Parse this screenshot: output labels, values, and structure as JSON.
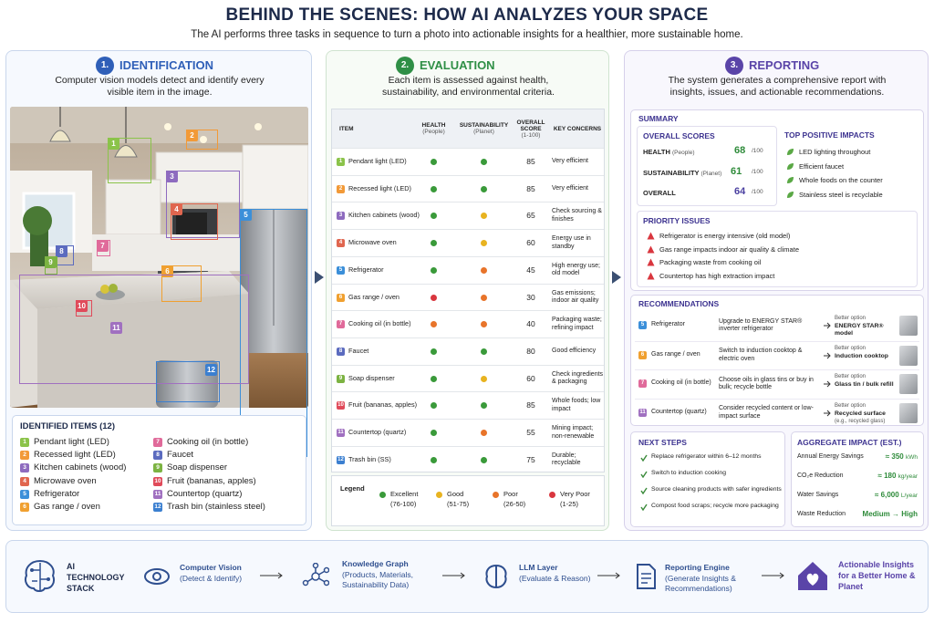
{
  "header": {
    "title": "BEHIND THE SCENES: HOW AI ANALYZES YOUR SPACE",
    "subtitle": "The AI performs three tasks in sequence to turn a photo into actionable insights for a healthier, more sustainable home."
  },
  "identification": {
    "number": "1.",
    "title": "IDENTIFICATION",
    "description": "Computer vision models detect and identify every visible item in the image.",
    "items_title": "IDENTIFIED ITEMS (12)",
    "items": [
      {
        "num": "1",
        "name": "Pendant light (LED)",
        "color": "#8bc34a"
      },
      {
        "num": "2",
        "name": "Recessed light (LED)",
        "color": "#f29a38"
      },
      {
        "num": "3",
        "name": "Kitchen cabinets (wood)",
        "color": "#8e6bbf"
      },
      {
        "num": "4",
        "name": "Microwave oven",
        "color": "#e0664f"
      },
      {
        "num": "5",
        "name": "Refrigerator",
        "color": "#3b8fd9"
      },
      {
        "num": "6",
        "name": "Gas range / oven",
        "color": "#f0a030"
      },
      {
        "num": "7",
        "name": "Cooking oil (in bottle)",
        "color": "#e06a9a"
      },
      {
        "num": "8",
        "name": "Faucet",
        "color": "#5b6bbf"
      },
      {
        "num": "9",
        "name": "Soap dispenser",
        "color": "#7cb342"
      },
      {
        "num": "10",
        "name": "Fruit (bananas, apples)",
        "color": "#e04a5a"
      },
      {
        "num": "11",
        "name": "Countertop (quartz)",
        "color": "#a070c0"
      },
      {
        "num": "12",
        "name": "Trash bin (stainless steel)",
        "color": "#3b7fd0"
      }
    ]
  },
  "evaluation": {
    "number": "2.",
    "title": "EVALUATION",
    "description": "Each item is assessed against health, sustainability, and environmental criteria.",
    "table": {
      "headers": [
        {
          "label": "ITEM"
        },
        {
          "label": "HEALTH",
          "sub": "(People)"
        },
        {
          "label": "SUSTAINABILITY",
          "sub": "(Planet)"
        },
        {
          "label": "OVERALL SCORE",
          "sub": "(1-100)"
        },
        {
          "label": "KEY CONCERNS"
        }
      ],
      "rows": [
        {
          "item": "Pendant light (LED)",
          "health": "#3a9a3a",
          "sustainability": "#3a9a3a",
          "score": 85,
          "concerns": "Very efficient"
        },
        {
          "item": "Recessed light (LED)",
          "health": "#3a9a3a",
          "sustainability": "#3a9a3a",
          "score": 85,
          "concerns": "Very efficient"
        },
        {
          "item": "Kitchen cabinets (wood)",
          "health": "#3a9a3a",
          "sustainability": "#e8b320",
          "score": 65,
          "concerns": "Check sourcing & finishes"
        },
        {
          "item": "Microwave oven",
          "health": "#3a9a3a",
          "sustainability": "#e8b320",
          "score": 60,
          "concerns": "Energy use in standby"
        },
        {
          "item": "Refrigerator",
          "health": "#3a9a3a",
          "sustainability": "#e8742a",
          "score": 45,
          "concerns": "High energy use; old model"
        },
        {
          "item": "Gas range / oven",
          "health": "#d9363e",
          "sustainability": "#e8742a",
          "score": 30,
          "concerns": "Gas emissions; indoor air quality"
        },
        {
          "item": "Cooking oil (in bottle)",
          "health": "#e8742a",
          "sustainability": "#e8742a",
          "score": 40,
          "concerns": "Packaging waste; refining impact"
        },
        {
          "item": "Faucet",
          "health": "#3a9a3a",
          "sustainability": "#3a9a3a",
          "score": 80,
          "concerns": "Good efficiency"
        },
        {
          "item": "Soap dispenser",
          "health": "#3a9a3a",
          "sustainability": "#e8b320",
          "score": 60,
          "concerns": "Check ingredients & packaging"
        },
        {
          "item": "Fruit (bananas, apples)",
          "health": "#3a9a3a",
          "sustainability": "#3a9a3a",
          "score": 85,
          "concerns": "Whole foods; low impact"
        },
        {
          "item": "Countertop (quartz)",
          "health": "#3a9a3a",
          "sustainability": "#e8742a",
          "score": 55,
          "concerns": "Mining impact; non-renewable"
        },
        {
          "item": "Trash bin (SS)",
          "health": "#3a9a3a",
          "sustainability": "#3a9a3a",
          "score": 75,
          "concerns": "Durable; recyclable"
        }
      ]
    },
    "legend": {
      "title": "Legend",
      "entries": [
        {
          "label": "Excellent",
          "range": "(76-100)",
          "color": "#3a9a3a"
        },
        {
          "label": "Good",
          "range": "(51-75)",
          "color": "#e8b320"
        },
        {
          "label": "Poor",
          "range": "(26-50)",
          "color": "#e8742a"
        },
        {
          "label": "Very Poor",
          "range": "(1-25)",
          "color": "#d9363e"
        }
      ]
    }
  },
  "reporting": {
    "number": "3.",
    "title": "REPORTING",
    "description": "The system generates a comprehensive report with insights, issues, and actionable recommendations.",
    "summary_title": "SUMMARY",
    "overall_scores": {
      "title": "OVERALL SCORES",
      "rows": [
        {
          "label": "HEALTH",
          "sub": "(People)",
          "score": 68,
          "max": "/100",
          "color": "#2e8b3a"
        },
        {
          "label": "SUSTAINABILITY",
          "sub": "(Planet)",
          "score": 61,
          "max": "/100",
          "color": "#2e8b3a"
        },
        {
          "label": "OVERALL",
          "score": 64,
          "max": "/100",
          "color": "#4a3fa0"
        }
      ]
    },
    "top_positive": {
      "title": "TOP POSITIVE IMPACTS",
      "items": [
        "LED lighting throughout",
        "Efficient faucet",
        "Whole foods on the counter",
        "Stainless steel is recyclable"
      ]
    },
    "priority": {
      "title": "PRIORITY ISSUES",
      "items": [
        "Refrigerator is energy intensive (old model)",
        "Gas range impacts indoor air quality & climate",
        "Packaging waste from cooking oil",
        "Countertop has high extraction impact"
      ]
    },
    "recommendations": {
      "title": "RECOMMENDATIONS",
      "rows": [
        {
          "num": "5",
          "color": "#3b8fd9",
          "item": "Refrigerator",
          "action": "Upgrade to ENERGY STAR® inverter refrigerator",
          "option_label": "Better option",
          "option": "ENERGY STAR® model"
        },
        {
          "num": "6",
          "color": "#f0a030",
          "item": "Gas range / oven",
          "action": "Switch to induction cooktop & electric oven",
          "option_label": "Better option",
          "option": "Induction cooktop"
        },
        {
          "num": "7",
          "color": "#e06a9a",
          "item": "Cooking oil (in bottle)",
          "action": "Choose oils in glass tins or buy in bulk; recycle bottle",
          "option_label": "Better option",
          "option": "Glass tin / bulk refill"
        },
        {
          "num": "11",
          "color": "#a070c0",
          "item": "Countertop (quartz)",
          "action": "Consider recycled content or low-impact surface",
          "option_label": "Better option",
          "option": "Recycled surface",
          "option_note": "(e.g., recycled glass)"
        }
      ]
    },
    "next_steps": {
      "title": "NEXT STEPS",
      "items": [
        "Replace refrigerator within 6–12 months",
        "Switch to induction cooking",
        "Source cleaning products with safer ingredients",
        "Compost food scraps; recycle more packaging"
      ]
    },
    "aggregate": {
      "title": "AGGREGATE IMPACT (EST.)",
      "rows": [
        {
          "label": "Annual Energy Savings",
          "value": "≈ 350",
          "unit": "kWh"
        },
        {
          "label": "CO₂e Reduction",
          "value": "≈ 180",
          "unit": "kg/year"
        },
        {
          "label": "Water Savings",
          "value": "≈ 6,000",
          "unit": "L/year"
        },
        {
          "label": "Waste Reduction",
          "value": "Medium → High"
        }
      ]
    }
  },
  "tech_stack": {
    "title": "AI TECHNOLOGY STACK",
    "steps": [
      {
        "title": "Computer Vision",
        "subtitle": "(Detect & Identify)"
      },
      {
        "title": "Knowledge Graph",
        "subtitle": "(Products, Materials, Sustainability Data)"
      },
      {
        "title": "LLM Layer",
        "subtitle": "(Evaluate & Reason)"
      },
      {
        "title": "Reporting Engine",
        "subtitle": "(Generate Insights & Recommendations)"
      }
    ],
    "result": "Actionable Insights for a Better Home & Planet"
  }
}
